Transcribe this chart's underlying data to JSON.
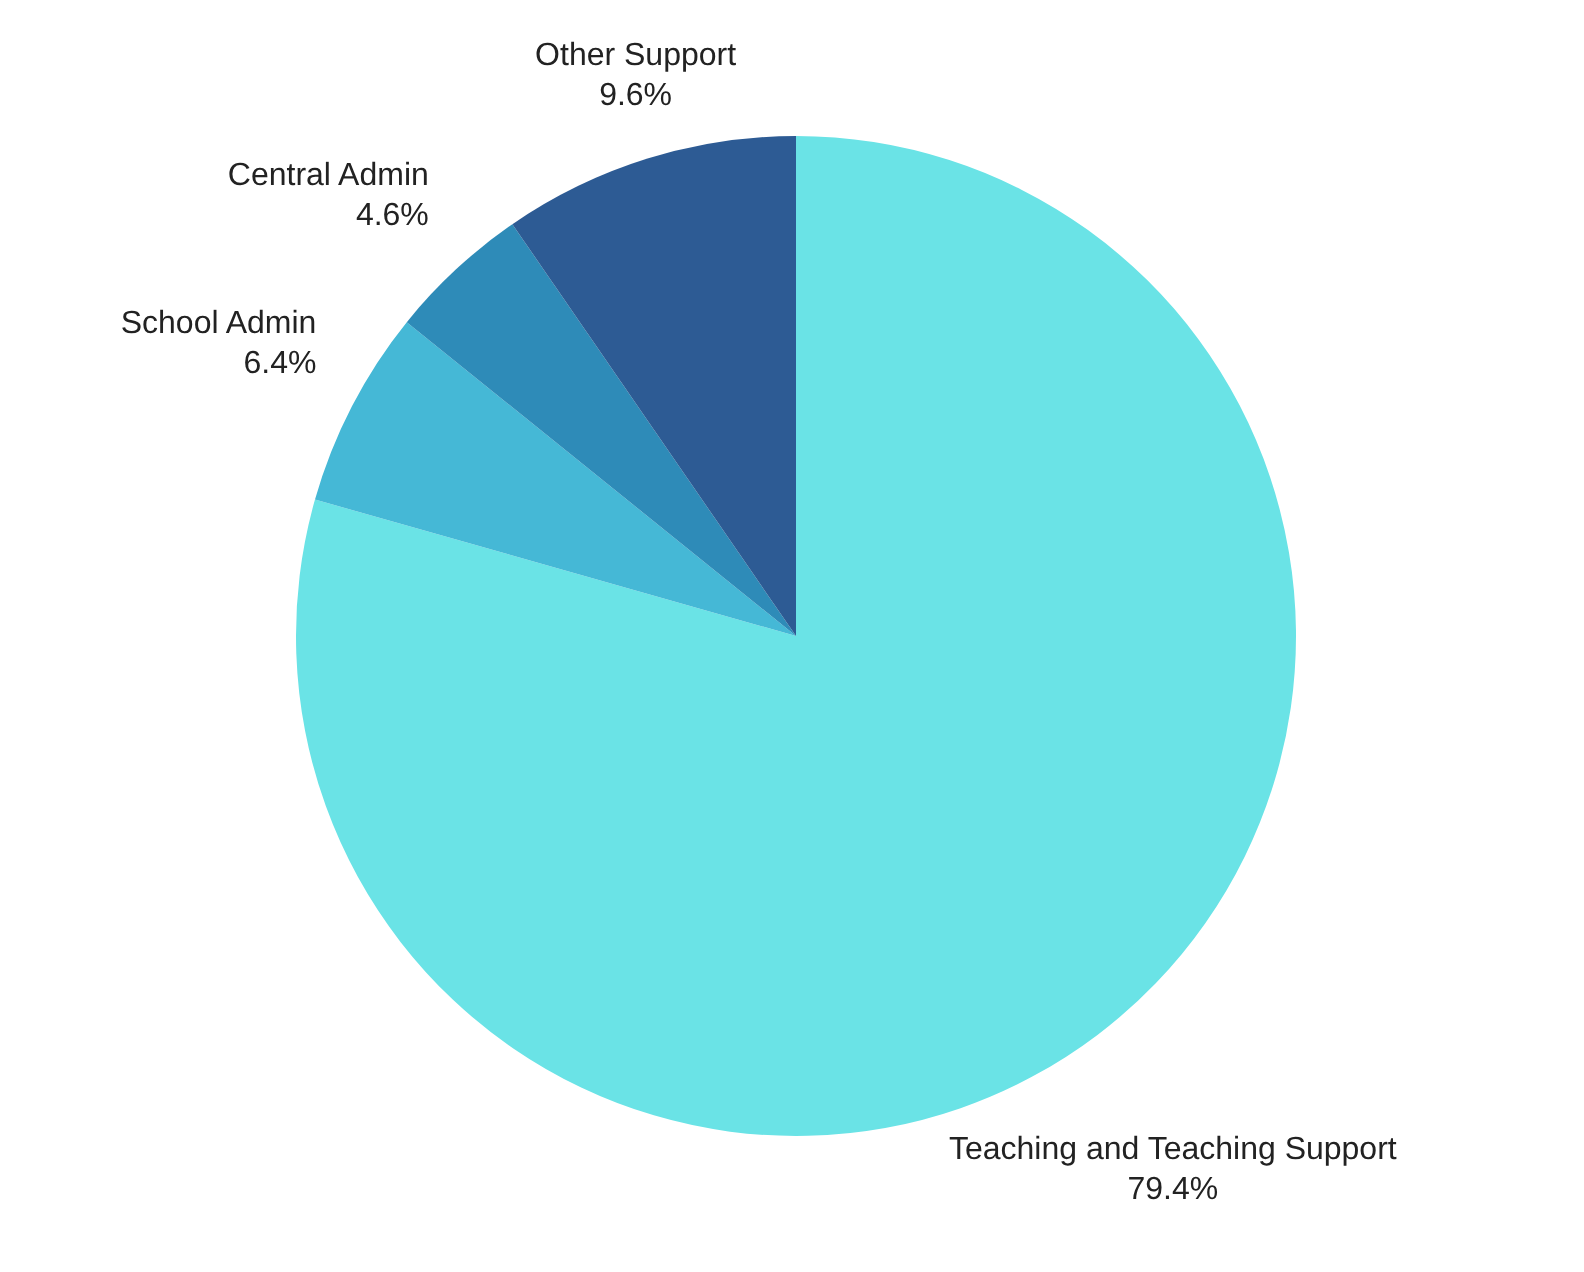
{
  "chart_data": {
    "type": "pie",
    "categories": [
      "Teaching and Teaching Support",
      "School Admin",
      "Central Admin",
      "Other Support"
    ],
    "values": [
      79.4,
      6.4,
      4.6,
      9.6
    ],
    "colors": [
      "#6ae3e6",
      "#45b8d6",
      "#2e8bb8",
      "#2d5b94"
    ],
    "value_labels": [
      "79.4%",
      "6.4%",
      "4.6%",
      "9.6%"
    ],
    "legend": false
  }
}
